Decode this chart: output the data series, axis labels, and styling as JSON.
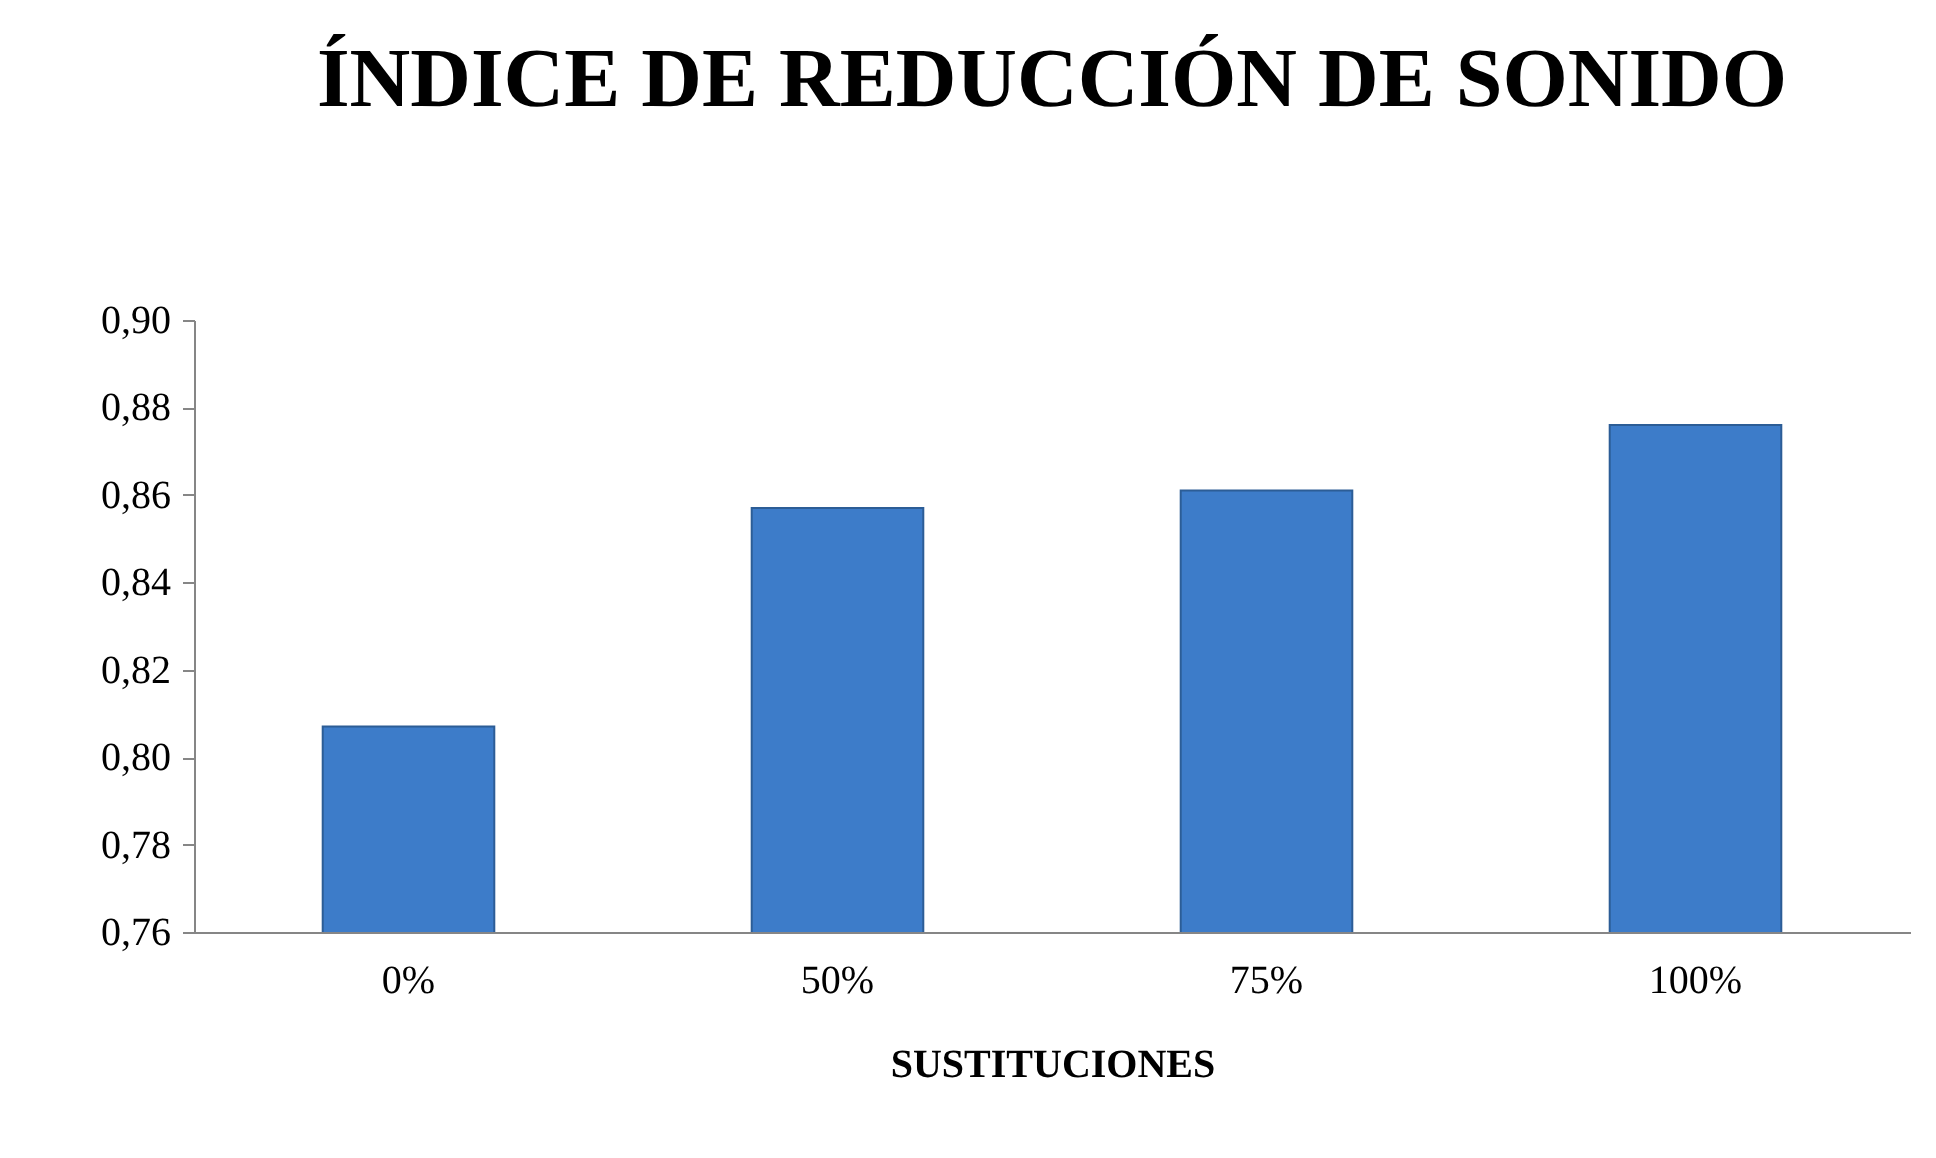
{
  "chart_data": {
    "type": "bar",
    "title": "ÍNDICE DE REDUCCIÓN DE SONIDO",
    "xlabel": "SUSTITUCIONES",
    "categories": [
      "0%",
      "50%",
      "75%",
      "100%"
    ],
    "values": [
      0.807,
      0.857,
      0.861,
      0.876
    ],
    "color": "#3d7cc9",
    "ylim": [
      0.76,
      0.9
    ],
    "yticks": [
      {
        "value": 0.76,
        "label": "0,76"
      },
      {
        "value": 0.78,
        "label": "0,78"
      },
      {
        "value": 0.8,
        "label": "0,80"
      },
      {
        "value": 0.82,
        "label": "0,82"
      },
      {
        "value": 0.84,
        "label": "0,84"
      },
      {
        "value": 0.86,
        "label": "0,86"
      },
      {
        "value": 0.88,
        "label": "0,88"
      },
      {
        "value": 0.9,
        "label": "0,90"
      }
    ]
  }
}
